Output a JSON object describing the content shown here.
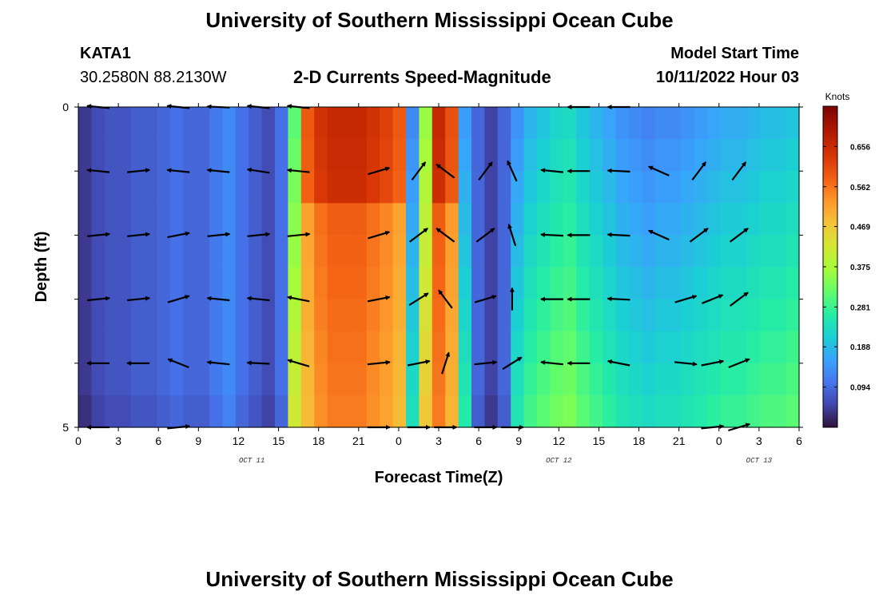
{
  "header": {
    "title": "University of Southern Mississippi Ocean Cube",
    "station": "KATA1",
    "location": "30.2580N  88.2130W",
    "subtitle": "2-D Currents Speed-Magnitude",
    "start_label": "Model Start Time",
    "start_value": "10/11/2022 Hour 03"
  },
  "footer": {
    "title": "University of Southern Mississippi Ocean Cube"
  },
  "chart_data": {
    "type": "heatmap",
    "title": "2-D Currents Speed-Magnitude",
    "xlabel": "Forecast Time(Z)",
    "ylabel": "Depth (ft)",
    "x_ticks": [
      "0",
      "3",
      "6",
      "9",
      "12",
      "15",
      "18",
      "21",
      "0",
      "3",
      "6",
      "9",
      "12",
      "15",
      "18",
      "21",
      "0",
      "3",
      "6"
    ],
    "y_ticks": [
      "0",
      "5"
    ],
    "ylim": [
      0,
      5
    ],
    "date_labels": [
      {
        "label": "OCT 11",
        "at_tick": 13
      },
      {
        "label": "OCT 12",
        "at_tick": 36
      },
      {
        "label": "OCT 13",
        "at_tick": 51
      }
    ],
    "colorbar": {
      "units": "Knots",
      "ticks": [
        "0.656",
        "0.562",
        "0.469",
        "0.375",
        "0.281",
        "0.188",
        "0.094"
      ],
      "min": 0.0,
      "max": 0.75
    },
    "time_bins": [
      0,
      1,
      2,
      3,
      4,
      5,
      6,
      7,
      8,
      9,
      10,
      11,
      12,
      13,
      14,
      15,
      16,
      17,
      18,
      19,
      20,
      21,
      22,
      23,
      24,
      25,
      26,
      27,
      28,
      29,
      30,
      31,
      32,
      33,
      34,
      35,
      36,
      37,
      38,
      39,
      40,
      41,
      42,
      43,
      44,
      45,
      46,
      47,
      48,
      49,
      50,
      51,
      52,
      53,
      54
    ],
    "depth_bins": [
      0.25,
      0.75,
      1.25,
      1.75,
      2.25,
      2.75,
      3.25,
      3.75,
      4.25,
      4.75
    ],
    "speed_by_time": [
      0.04,
      0.06,
      0.07,
      0.07,
      0.08,
      0.08,
      0.09,
      0.1,
      0.09,
      0.09,
      0.11,
      0.13,
      0.1,
      0.08,
      0.06,
      0.1,
      0.33,
      0.55,
      0.6,
      0.62,
      0.62,
      0.62,
      0.6,
      0.58,
      0.55,
      0.15,
      0.38,
      0.62,
      0.56,
      0.17,
      0.09,
      0.05,
      0.09,
      0.16,
      0.2,
      0.22,
      0.24,
      0.25,
      0.22,
      0.2,
      0.18,
      0.16,
      0.15,
      0.14,
      0.15,
      0.15,
      0.16,
      0.17,
      0.18,
      0.19,
      0.19,
      0.2,
      0.21,
      0.21,
      0.22
    ],
    "vectors": [
      {
        "t": 1.5,
        "d": 0,
        "u": -1,
        "v": 0.1
      },
      {
        "t": 7.5,
        "d": 0,
        "u": -1,
        "v": 0.1
      },
      {
        "t": 10.5,
        "d": 0,
        "u": -1,
        "v": 0.05
      },
      {
        "t": 13.5,
        "d": 0,
        "u": -1,
        "v": 0.1
      },
      {
        "t": 16.5,
        "d": 0,
        "u": -1,
        "v": 0.1
      },
      {
        "t": 37.5,
        "d": 0,
        "u": -1,
        "v": 0
      },
      {
        "t": 40.5,
        "d": 0,
        "u": -1,
        "v": 0
      },
      {
        "t": 1.5,
        "d": 1,
        "u": -1,
        "v": 0.1
      },
      {
        "t": 4.5,
        "d": 1,
        "u": 1,
        "v": 0.1
      },
      {
        "t": 7.5,
        "d": 1,
        "u": -1,
        "v": 0.1
      },
      {
        "t": 10.5,
        "d": 1,
        "u": -1,
        "v": 0.1
      },
      {
        "t": 13.5,
        "d": 1,
        "u": -1,
        "v": 0.15
      },
      {
        "t": 16.5,
        "d": 1,
        "u": -1,
        "v": 0.1
      },
      {
        "t": 22.5,
        "d": 1,
        "u": 1,
        "v": 0.3
      },
      {
        "t": 25.5,
        "d": 1,
        "u": 0.6,
        "v": 0.8
      },
      {
        "t": 27.5,
        "d": 1,
        "u": -0.8,
        "v": 0.6
      },
      {
        "t": 30.5,
        "d": 1,
        "u": 0.6,
        "v": 0.8
      },
      {
        "t": 32.5,
        "d": 1,
        "u": -0.4,
        "v": 0.9
      },
      {
        "t": 35.5,
        "d": 1,
        "u": -1,
        "v": 0.1
      },
      {
        "t": 37.5,
        "d": 1,
        "u": -1,
        "v": 0
      },
      {
        "t": 40.5,
        "d": 1,
        "u": -1,
        "v": 0.05
      },
      {
        "t": 43.5,
        "d": 1,
        "u": -0.9,
        "v": 0.4
      },
      {
        "t": 46.5,
        "d": 1,
        "u": 0.6,
        "v": 0.8
      },
      {
        "t": 49.5,
        "d": 1,
        "u": 0.6,
        "v": 0.8
      },
      {
        "t": 1.5,
        "d": 2,
        "u": 1,
        "v": 0.1
      },
      {
        "t": 4.5,
        "d": 2,
        "u": 1,
        "v": 0.1
      },
      {
        "t": 7.5,
        "d": 2,
        "u": 1,
        "v": 0.2
      },
      {
        "t": 10.5,
        "d": 2,
        "u": 1,
        "v": 0.1
      },
      {
        "t": 13.5,
        "d": 2,
        "u": 1,
        "v": 0.1
      },
      {
        "t": 16.5,
        "d": 2,
        "u": 1,
        "v": 0.1
      },
      {
        "t": 22.5,
        "d": 2,
        "u": 1,
        "v": 0.3
      },
      {
        "t": 25.5,
        "d": 2,
        "u": 0.8,
        "v": 0.6
      },
      {
        "t": 27.5,
        "d": 2,
        "u": -0.8,
        "v": 0.6
      },
      {
        "t": 30.5,
        "d": 2,
        "u": 0.8,
        "v": 0.6
      },
      {
        "t": 32.5,
        "d": 2,
        "u": -0.3,
        "v": 0.95
      },
      {
        "t": 35.5,
        "d": 2,
        "u": -1,
        "v": 0.05
      },
      {
        "t": 37.5,
        "d": 2,
        "u": -1,
        "v": 0
      },
      {
        "t": 40.5,
        "d": 2,
        "u": -1,
        "v": 0.05
      },
      {
        "t": 43.5,
        "d": 2,
        "u": -0.9,
        "v": 0.4
      },
      {
        "t": 46.5,
        "d": 2,
        "u": 0.8,
        "v": 0.6
      },
      {
        "t": 49.5,
        "d": 2,
        "u": 0.8,
        "v": 0.6
      },
      {
        "t": 1.5,
        "d": 3,
        "u": 1,
        "v": 0.1
      },
      {
        "t": 4.5,
        "d": 3,
        "u": 1,
        "v": 0.1
      },
      {
        "t": 7.5,
        "d": 3,
        "u": 1,
        "v": 0.3
      },
      {
        "t": 10.5,
        "d": 3,
        "u": -1,
        "v": 0.1
      },
      {
        "t": 13.5,
        "d": 3,
        "u": -1,
        "v": 0.1
      },
      {
        "t": 16.5,
        "d": 3,
        "u": -1,
        "v": 0.2
      },
      {
        "t": 22.5,
        "d": 3,
        "u": 1,
        "v": 0.2
      },
      {
        "t": 25.5,
        "d": 3,
        "u": 0.8,
        "v": 0.5
      },
      {
        "t": 27.5,
        "d": 3,
        "u": -0.6,
        "v": 0.8
      },
      {
        "t": 30.5,
        "d": 3,
        "u": 1,
        "v": 0.3
      },
      {
        "t": 32.5,
        "d": 3,
        "u": 0,
        "v": 1
      },
      {
        "t": 35.5,
        "d": 3,
        "u": -1,
        "v": 0
      },
      {
        "t": 37.5,
        "d": 3,
        "u": -1,
        "v": 0
      },
      {
        "t": 40.5,
        "d": 3,
        "u": -1,
        "v": 0.05
      },
      {
        "t": 45.5,
        "d": 3,
        "u": 1,
        "v": 0.3
      },
      {
        "t": 47.5,
        "d": 3,
        "u": 1,
        "v": 0.4
      },
      {
        "t": 49.5,
        "d": 3,
        "u": 0.8,
        "v": 0.6
      },
      {
        "t": 1.5,
        "d": 4,
        "u": -1,
        "v": 0
      },
      {
        "t": 4.5,
        "d": 4,
        "u": -1,
        "v": 0
      },
      {
        "t": 7.5,
        "d": 4,
        "u": -1,
        "v": 0.4
      },
      {
        "t": 10.5,
        "d": 4,
        "u": -1,
        "v": 0.1
      },
      {
        "t": 13.5,
        "d": 4,
        "u": -1,
        "v": 0.05
      },
      {
        "t": 16.5,
        "d": 4,
        "u": -1,
        "v": 0.3
      },
      {
        "t": 22.5,
        "d": 4,
        "u": 1,
        "v": 0.1
      },
      {
        "t": 25.5,
        "d": 4,
        "u": 1,
        "v": 0.2
      },
      {
        "t": 27.5,
        "d": 4,
        "u": 0.3,
        "v": 0.95
      },
      {
        "t": 30.5,
        "d": 4,
        "u": 1,
        "v": 0.1
      },
      {
        "t": 32.5,
        "d": 4,
        "u": 0.8,
        "v": 0.5
      },
      {
        "t": 35.5,
        "d": 4,
        "u": -1,
        "v": 0.1
      },
      {
        "t": 37.5,
        "d": 4,
        "u": -1,
        "v": 0
      },
      {
        "t": 40.5,
        "d": 4,
        "u": -1,
        "v": 0.2
      },
      {
        "t": 45.5,
        "d": 4,
        "u": 1,
        "v": -0.1
      },
      {
        "t": 47.5,
        "d": 4,
        "u": 1,
        "v": 0.2
      },
      {
        "t": 49.5,
        "d": 4,
        "u": 1,
        "v": 0.4
      },
      {
        "t": 1.5,
        "d": 5,
        "u": -1,
        "v": 0
      },
      {
        "t": 7.5,
        "d": 5,
        "u": 1,
        "v": 0.1
      },
      {
        "t": 22.5,
        "d": 5,
        "u": 1,
        "v": 0
      },
      {
        "t": 25.5,
        "d": 5,
        "u": 1,
        "v": 0
      },
      {
        "t": 27.5,
        "d": 5,
        "u": 1,
        "v": 0
      },
      {
        "t": 30.5,
        "d": 5,
        "u": 1,
        "v": 0
      },
      {
        "t": 32.5,
        "d": 5,
        "u": 1,
        "v": 0
      },
      {
        "t": 47.5,
        "d": 5,
        "u": 1,
        "v": 0.1
      },
      {
        "t": 49.5,
        "d": 5,
        "u": 1,
        "v": 0.3
      }
    ]
  }
}
